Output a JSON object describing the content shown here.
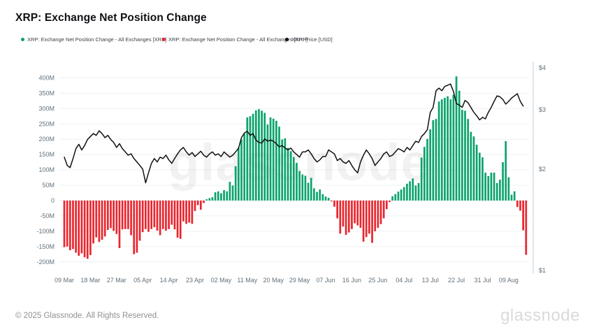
{
  "header": {
    "title": "XRP: Exchange Net Position Change"
  },
  "legend": [
    {
      "label": "XRP: Exchange Net Position Change - All Exchanges [XRP]",
      "color": "#0ca36c"
    },
    {
      "label": "XRP: Exchange Net Position Change - All Exchanges [XRP]",
      "color": "#e8262f"
    },
    {
      "label": "XRP: Price [USD]",
      "color": "#111111"
    }
  ],
  "watermark": "glassnode",
  "footer": {
    "copyright": "© 2025 Glassnode. All Rights Reserved.",
    "brand": "glassnode"
  },
  "colors": {
    "bar_positive": "#0ca36c",
    "bar_negative": "#e8262f",
    "price_line": "#111111",
    "grid": "#edf0f2",
    "axis_text": "#62707a",
    "right_axis_line": "#c9ced4"
  },
  "chart_data": {
    "type": "bar+line",
    "title": "XRP: Exchange Net Position Change",
    "interval": "daily",
    "start_date": "09 Mar 2025",
    "end_date": "15 Aug 2025",
    "x_tick_labels": [
      "09 Mar",
      "18 Mar",
      "27 Mar",
      "05 Apr",
      "14 Apr",
      "23 Apr",
      "02 May",
      "11 May",
      "20 May",
      "29 May",
      "07 Jun",
      "16 Jun",
      "25 Jun",
      "04 Jul",
      "13 Jul",
      "22 Jul",
      "31 Jul",
      "09 Aug"
    ],
    "left_axis": {
      "units": "XRP (millions)",
      "tick_labels": [
        "400M",
        "350M",
        "300M",
        "250M",
        "200M",
        "150M",
        "100M",
        "50M",
        "0",
        "-50M",
        "-100M",
        "-150M",
        "-200M"
      ],
      "tick_values": [
        400,
        350,
        300,
        250,
        200,
        150,
        100,
        50,
        0,
        -50,
        -100,
        -150,
        -200
      ],
      "range": [
        -220,
        430
      ],
      "grid": true
    },
    "right_axis": {
      "units": "USD",
      "scale": "log",
      "tick_labels": [
        "$4",
        "$3",
        "$2",
        "$1"
      ],
      "tick_values": [
        4,
        3,
        2,
        1
      ],
      "range": [
        1,
        4
      ]
    },
    "legend_position": "top-left",
    "series": [
      {
        "name": "XRP: Exchange Net Position Change - All Exchanges [XRP]",
        "type": "bar",
        "units": "million XRP per day",
        "positive_color": "#0ca36c",
        "negative_color": "#e8262f",
        "values": [
          -152,
          -150,
          -162,
          -158,
          -170,
          -180,
          -172,
          -185,
          -190,
          -178,
          -140,
          -120,
          -135,
          -128,
          -117,
          -96,
          -90,
          -99,
          -109,
          -155,
          -94,
          -93,
          -93,
          -113,
          -175,
          -170,
          -131,
          -103,
          -93,
          -102,
          -93,
          -87,
          -98,
          -113,
          -93,
          -98,
          -93,
          -79,
          -94,
          -121,
          -125,
          -68,
          -76,
          -72,
          -76,
          -34,
          -15,
          -30,
          -8,
          4,
          8,
          11,
          27,
          30,
          24,
          34,
          30,
          61,
          49,
          112,
          172,
          199,
          218,
          271,
          275,
          283,
          294,
          298,
          293,
          286,
          248,
          271,
          267,
          260,
          241,
          199,
          203,
          172,
          161,
          142,
          123,
          96,
          85,
          81,
          58,
          74,
          40,
          28,
          36,
          21,
          13,
          9,
          -3,
          -20,
          -58,
          -108,
          -85,
          -112,
          -104,
          -93,
          -74,
          -81,
          -89,
          -134,
          -119,
          -108,
          -138,
          -100,
          -89,
          -77,
          -58,
          -28,
          -5,
          14,
          21,
          29,
          36,
          44,
          55,
          63,
          72,
          49,
          57,
          140,
          175,
          201,
          232,
          262,
          266,
          323,
          330,
          335,
          340,
          330,
          345,
          405,
          358,
          296,
          293,
          266,
          224,
          209,
          182,
          156,
          141,
          91,
          80,
          91,
          91,
          57,
          68,
          125,
          194,
          76,
          19,
          30,
          -21,
          -33,
          -97,
          -177
        ]
      },
      {
        "name": "XRP: Price [USD]",
        "type": "line",
        "color": "#111111",
        "values": [
          2.17,
          2.05,
          2.02,
          2.15,
          2.3,
          2.37,
          2.28,
          2.35,
          2.45,
          2.5,
          2.55,
          2.52,
          2.6,
          2.55,
          2.48,
          2.52,
          2.45,
          2.4,
          2.32,
          2.38,
          2.3,
          2.25,
          2.2,
          2.22,
          2.15,
          2.1,
          2.05,
          2.0,
          1.82,
          1.95,
          2.08,
          2.15,
          2.1,
          2.17,
          2.15,
          2.2,
          2.13,
          2.08,
          2.15,
          2.22,
          2.28,
          2.32,
          2.25,
          2.2,
          2.24,
          2.18,
          2.22,
          2.26,
          2.2,
          2.17,
          2.22,
          2.25,
          2.2,
          2.22,
          2.18,
          2.25,
          2.21,
          2.17,
          2.2,
          2.25,
          2.31,
          2.48,
          2.56,
          2.59,
          2.52,
          2.55,
          2.44,
          2.4,
          2.39,
          2.46,
          2.42,
          2.44,
          2.42,
          2.38,
          2.33,
          2.35,
          2.31,
          2.28,
          2.31,
          2.25,
          2.21,
          2.17,
          2.25,
          2.25,
          2.28,
          2.22,
          2.15,
          2.1,
          2.13,
          2.18,
          2.18,
          2.28,
          2.25,
          2.22,
          2.12,
          2.15,
          2.1,
          2.08,
          2.12,
          2.05,
          1.99,
          1.95,
          2.1,
          2.2,
          2.28,
          2.22,
          2.15,
          2.05,
          2.1,
          2.15,
          2.22,
          2.25,
          2.18,
          2.2,
          2.25,
          2.3,
          2.28,
          2.25,
          2.32,
          2.28,
          2.35,
          2.42,
          2.4,
          2.5,
          2.55,
          2.62,
          2.95,
          3.05,
          3.42,
          3.48,
          3.42,
          3.52,
          3.55,
          3.58,
          3.4,
          3.13,
          3.1,
          3.05,
          3.2,
          3.15,
          3.05,
          2.95,
          2.88,
          2.8,
          2.85,
          2.82,
          2.95,
          3.05,
          3.18,
          3.3,
          3.28,
          3.22,
          3.12,
          3.18,
          3.25,
          3.3,
          3.35,
          3.18,
          3.08
        ]
      }
    ]
  }
}
